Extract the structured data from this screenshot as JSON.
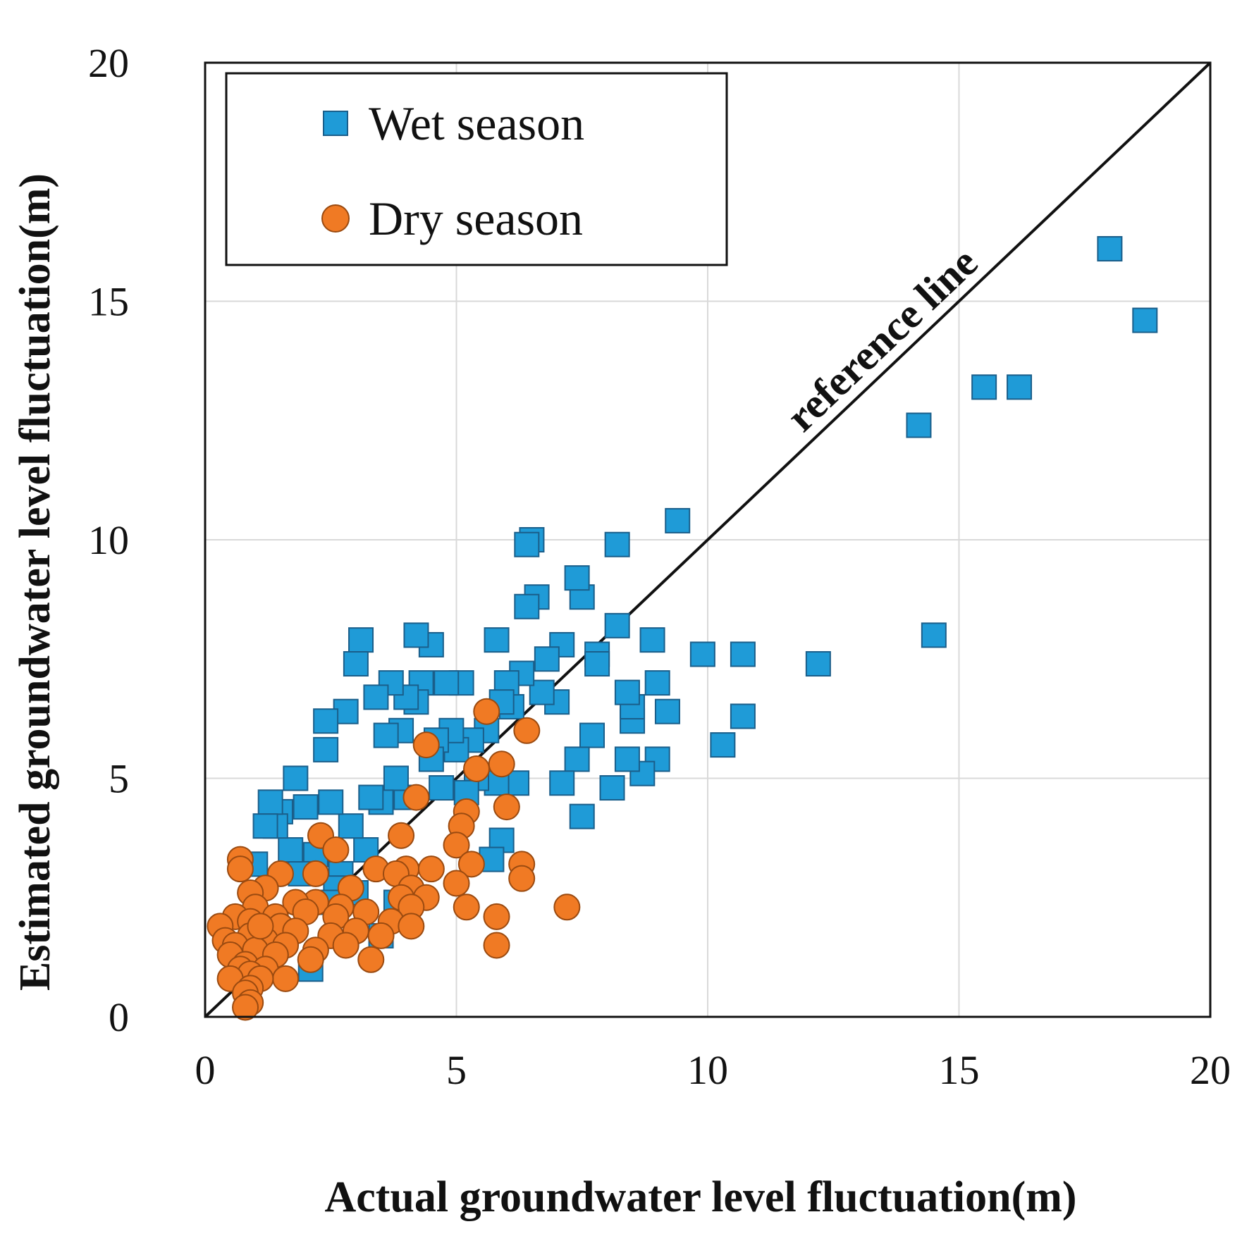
{
  "chart_data": {
    "type": "scatter",
    "xlabel": "Actual groundwater level fluctuation(m)",
    "ylabel": "Estimated groundwater level fluctuation(m)",
    "xlim": [
      0,
      20
    ],
    "ylim": [
      0,
      20
    ],
    "xticks": [
      "0",
      "5",
      "10",
      "15",
      "20"
    ],
    "yticks": [
      "0",
      "5",
      "10",
      "15",
      "20"
    ],
    "grid": true,
    "legend_position": "top-left",
    "reference_line": {
      "label": "reference line",
      "from": [
        0,
        0
      ],
      "to": [
        20,
        20
      ]
    },
    "series": [
      {
        "name": "Wet season",
        "marker": "square",
        "color": "#1F9BD7",
        "points": [
          [
            18.0,
            16.1
          ],
          [
            18.7,
            14.6
          ],
          [
            15.5,
            13.2
          ],
          [
            16.2,
            13.2
          ],
          [
            14.2,
            12.4
          ],
          [
            14.5,
            8.0
          ],
          [
            12.2,
            7.4
          ],
          [
            10.7,
            7.6
          ],
          [
            9.9,
            7.6
          ],
          [
            10.7,
            6.3
          ],
          [
            10.3,
            5.7
          ],
          [
            9.4,
            10.4
          ],
          [
            9.2,
            6.4
          ],
          [
            9.0,
            7.0
          ],
          [
            9.0,
            5.4
          ],
          [
            8.9,
            7.9
          ],
          [
            8.7,
            5.1
          ],
          [
            8.5,
            6.2
          ],
          [
            8.5,
            6.5
          ],
          [
            8.4,
            5.4
          ],
          [
            8.4,
            6.8
          ],
          [
            8.2,
            8.2
          ],
          [
            8.2,
            9.9
          ],
          [
            8.1,
            4.8
          ],
          [
            7.8,
            7.6
          ],
          [
            7.8,
            7.4
          ],
          [
            7.7,
            5.9
          ],
          [
            7.5,
            4.2
          ],
          [
            7.5,
            8.8
          ],
          [
            7.4,
            9.2
          ],
          [
            7.4,
            5.4
          ],
          [
            7.1,
            4.9
          ],
          [
            7.1,
            7.8
          ],
          [
            7.0,
            6.6
          ],
          [
            6.8,
            7.5
          ],
          [
            6.7,
            6.8
          ],
          [
            6.6,
            8.8
          ],
          [
            6.5,
            10.0
          ],
          [
            6.4,
            9.9
          ],
          [
            6.4,
            8.6
          ],
          [
            6.3,
            7.2
          ],
          [
            6.2,
            4.9
          ],
          [
            6.1,
            6.5
          ],
          [
            6.0,
            7.0
          ],
          [
            5.9,
            6.6
          ],
          [
            5.9,
            3.7
          ],
          [
            5.8,
            4.9
          ],
          [
            5.7,
            3.3
          ],
          [
            5.8,
            7.9
          ],
          [
            5.6,
            6.0
          ],
          [
            5.4,
            5.0
          ],
          [
            5.3,
            5.8
          ],
          [
            5.2,
            4.7
          ],
          [
            5.1,
            7.0
          ],
          [
            5.0,
            5.6
          ],
          [
            4.9,
            6.0
          ],
          [
            4.8,
            7.0
          ],
          [
            4.7,
            4.8
          ],
          [
            4.6,
            5.8
          ],
          [
            4.5,
            7.8
          ],
          [
            4.5,
            5.4
          ],
          [
            4.3,
            7.0
          ],
          [
            4.2,
            8.0
          ],
          [
            4.2,
            6.6
          ],
          [
            4.0,
            4.6
          ],
          [
            4.0,
            6.7
          ],
          [
            3.9,
            6.0
          ],
          [
            3.8,
            5.0
          ],
          [
            3.7,
            7.0
          ],
          [
            3.6,
            5.9
          ],
          [
            3.5,
            4.5
          ],
          [
            3.4,
            6.7
          ],
          [
            3.3,
            4.6
          ],
          [
            3.2,
            3.5
          ],
          [
            3.1,
            7.9
          ],
          [
            3.0,
            7.4
          ],
          [
            2.9,
            4.0
          ],
          [
            2.8,
            6.4
          ],
          [
            2.7,
            3.0
          ],
          [
            2.6,
            2.7
          ],
          [
            2.5,
            4.5
          ],
          [
            2.4,
            5.6
          ],
          [
            2.4,
            6.2
          ],
          [
            2.2,
            3.4
          ],
          [
            2.1,
            1.0
          ],
          [
            2.0,
            4.4
          ],
          [
            1.9,
            3.0
          ],
          [
            1.8,
            5.0
          ],
          [
            1.7,
            3.5
          ],
          [
            1.5,
            4.3
          ],
          [
            1.4,
            4.0
          ],
          [
            1.3,
            4.5
          ],
          [
            1.2,
            4.0
          ],
          [
            1.0,
            3.2
          ],
          [
            3.5,
            1.7
          ],
          [
            3.0,
            2.6
          ],
          [
            2.5,
            2.4
          ],
          [
            3.8,
            2.4
          ]
        ]
      },
      {
        "name": "Dry season",
        "marker": "circle",
        "color": "#F07A24",
        "points": [
          [
            5.6,
            6.4
          ],
          [
            6.4,
            6.0
          ],
          [
            4.4,
            5.7
          ],
          [
            5.9,
            5.3
          ],
          [
            5.4,
            5.2
          ],
          [
            4.2,
            4.6
          ],
          [
            6.0,
            4.4
          ],
          [
            5.2,
            4.3
          ],
          [
            5.1,
            4.0
          ],
          [
            3.9,
            3.8
          ],
          [
            2.3,
            3.8
          ],
          [
            5.0,
            3.6
          ],
          [
            2.6,
            3.5
          ],
          [
            0.7,
            3.3
          ],
          [
            6.3,
            3.2
          ],
          [
            5.3,
            3.2
          ],
          [
            3.4,
            3.1
          ],
          [
            4.0,
            3.1
          ],
          [
            0.7,
            3.1
          ],
          [
            4.5,
            3.1
          ],
          [
            2.2,
            3.0
          ],
          [
            3.8,
            3.0
          ],
          [
            1.5,
            3.0
          ],
          [
            6.3,
            2.9
          ],
          [
            5.0,
            2.8
          ],
          [
            4.1,
            2.7
          ],
          [
            2.9,
            2.7
          ],
          [
            1.2,
            2.7
          ],
          [
            0.9,
            2.6
          ],
          [
            3.9,
            2.5
          ],
          [
            2.2,
            2.4
          ],
          [
            4.4,
            2.5
          ],
          [
            1.8,
            2.4
          ],
          [
            2.7,
            2.3
          ],
          [
            1.0,
            2.3
          ],
          [
            4.1,
            2.3
          ],
          [
            7.2,
            2.3
          ],
          [
            5.2,
            2.3
          ],
          [
            3.2,
            2.2
          ],
          [
            2.0,
            2.2
          ],
          [
            0.6,
            2.1
          ],
          [
            1.4,
            2.1
          ],
          [
            2.6,
            2.1
          ],
          [
            0.9,
            2.0
          ],
          [
            1.5,
            1.9
          ],
          [
            5.8,
            2.1
          ],
          [
            3.7,
            2.0
          ],
          [
            4.1,
            1.9
          ],
          [
            0.3,
            1.9
          ],
          [
            3.0,
            1.8
          ],
          [
            1.8,
            1.8
          ],
          [
            2.5,
            1.7
          ],
          [
            0.9,
            1.7
          ],
          [
            3.5,
            1.7
          ],
          [
            0.4,
            1.6
          ],
          [
            1.2,
            1.6
          ],
          [
            2.8,
            1.5
          ],
          [
            5.8,
            1.5
          ],
          [
            1.6,
            1.5
          ],
          [
            0.6,
            1.5
          ],
          [
            2.2,
            1.4
          ],
          [
            1.0,
            1.4
          ],
          [
            0.5,
            1.3
          ],
          [
            1.4,
            1.3
          ],
          [
            3.3,
            1.2
          ],
          [
            2.1,
            1.2
          ],
          [
            0.8,
            1.1
          ],
          [
            1.2,
            1.0
          ],
          [
            0.7,
            1.0
          ],
          [
            0.9,
            0.9
          ],
          [
            1.6,
            0.8
          ],
          [
            0.5,
            0.8
          ],
          [
            1.1,
            0.8
          ],
          [
            0.9,
            0.6
          ],
          [
            0.8,
            0.5
          ],
          [
            0.9,
            0.3
          ],
          [
            0.8,
            0.2
          ],
          [
            1.1,
            1.9
          ]
        ]
      }
    ]
  }
}
